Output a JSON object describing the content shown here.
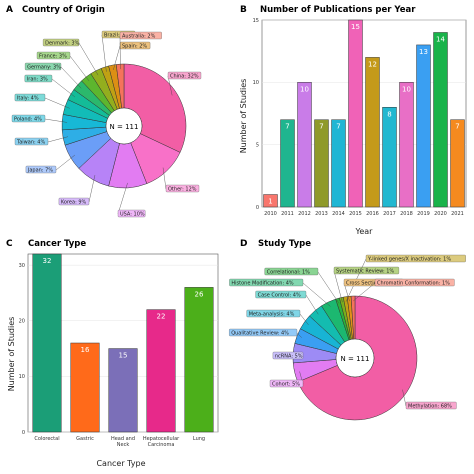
{
  "chart_data": [
    {
      "panel": "A",
      "type": "pie",
      "title": "Country of Origin",
      "center_label": "N = 111",
      "slices": [
        {
          "label": "China: 32%",
          "value": 32,
          "color": "#f25ea5"
        },
        {
          "label": "Other: 12%",
          "value": 12,
          "color": "#f871c8"
        },
        {
          "label": "USA: 10%",
          "value": 10,
          "color": "#e27cf2"
        },
        {
          "label": "Korea: 9%",
          "value": 9,
          "color": "#b783f7"
        },
        {
          "label": "Japan: 7%",
          "value": 7,
          "color": "#6b9ef7"
        },
        {
          "label": "Taiwan: 4%",
          "value": 4,
          "color": "#2eaee6"
        },
        {
          "label": "Poland: 4%",
          "value": 4,
          "color": "#17b8d6"
        },
        {
          "label": "Italy: 4%",
          "value": 4,
          "color": "#12bcb8"
        },
        {
          "label": "Iran: 3%",
          "value": 3,
          "color": "#14bc98"
        },
        {
          "label": "Germany: 3%",
          "value": 3,
          "color": "#2bb86c"
        },
        {
          "label": "France: 3%",
          "value": 3,
          "color": "#5db62e"
        },
        {
          "label": "Denmark: 3%",
          "value": 3,
          "color": "#93ae1e"
        },
        {
          "label": "Brazil: 2%",
          "value": 2,
          "color": "#c0a114"
        },
        {
          "label": "Spain: 2%",
          "value": 2,
          "color": "#dc8f14"
        },
        {
          "label": "Australia: 2%",
          "value": 2,
          "color": "#f5735c"
        }
      ]
    },
    {
      "panel": "B",
      "type": "bar",
      "title": "Number of Publications per Year",
      "xlabel": "Year",
      "ylabel": "Number of Studies",
      "ylim": [
        0,
        15
      ],
      "yticks": [
        0,
        5,
        10,
        15
      ],
      "categories": [
        "2010",
        "2011",
        "2012",
        "2013",
        "2014",
        "2015",
        "2016",
        "2017",
        "2018",
        "2019",
        "2020",
        "2021"
      ],
      "values": [
        1,
        7,
        10,
        7,
        7,
        15,
        12,
        8,
        10,
        13,
        14,
        7
      ],
      "colors": [
        "#f8766d",
        "#1fb58f",
        "#c97ce8",
        "#8f9a2a",
        "#1fb6d4",
        "#f062b7",
        "#c49a1a",
        "#21b8d0",
        "#e86fc6",
        "#3a9ff2",
        "#19b34a",
        "#f58a1f"
      ]
    },
    {
      "panel": "C",
      "type": "bar",
      "title": "Cancer Type",
      "xlabel": "Cancer Type",
      "ylabel": "Number of Studies",
      "ylim": [
        0,
        32
      ],
      "yticks": [
        0,
        10,
        20,
        30
      ],
      "categories": [
        "Colorectal",
        "Gastric",
        "Head and\nNeck",
        "Hepatocellular\nCarcinoma",
        "Lung"
      ],
      "values": [
        32,
        16,
        15,
        22,
        26
      ],
      "colors": [
        "#1b9e77",
        "#ff6a1a",
        "#7b6fb8",
        "#e7298a",
        "#4caf1a"
      ]
    },
    {
      "panel": "D",
      "type": "pie",
      "title": "Study Type",
      "center_label": "N = 111",
      "slices": [
        {
          "label": "Methylation: 68%",
          "value": 68,
          "color": "#f25ea5"
        },
        {
          "label": "Cohort: 5%",
          "value": 5,
          "color": "#e27cf2"
        },
        {
          "label": "ncRNA: 5%",
          "value": 5,
          "color": "#9d8bf5"
        },
        {
          "label": "Qualitative Review: 4%",
          "value": 4,
          "color": "#3a9ff2"
        },
        {
          "label": "Meta-analysis: 4%",
          "value": 4,
          "color": "#18b4d4"
        },
        {
          "label": "Case Control: 4%",
          "value": 4,
          "color": "#14bcb0"
        },
        {
          "label": "Histone Modification: 4%",
          "value": 4,
          "color": "#1cb870"
        },
        {
          "label": "Correlational: 1%",
          "value": 1,
          "color": "#2bb13a"
        },
        {
          "label": "Systematic Review: 1%",
          "value": 1,
          "color": "#78ae1e"
        },
        {
          "label": "Y-linked genes/X inactivation: 1%",
          "value": 1,
          "color": "#c0a114"
        },
        {
          "label": "Cross Sectional: 1%",
          "value": 1,
          "color": "#e0901a"
        },
        {
          "label": "Chromatin Conformation: 1%",
          "value": 1,
          "color": "#f5735c"
        }
      ]
    }
  ]
}
